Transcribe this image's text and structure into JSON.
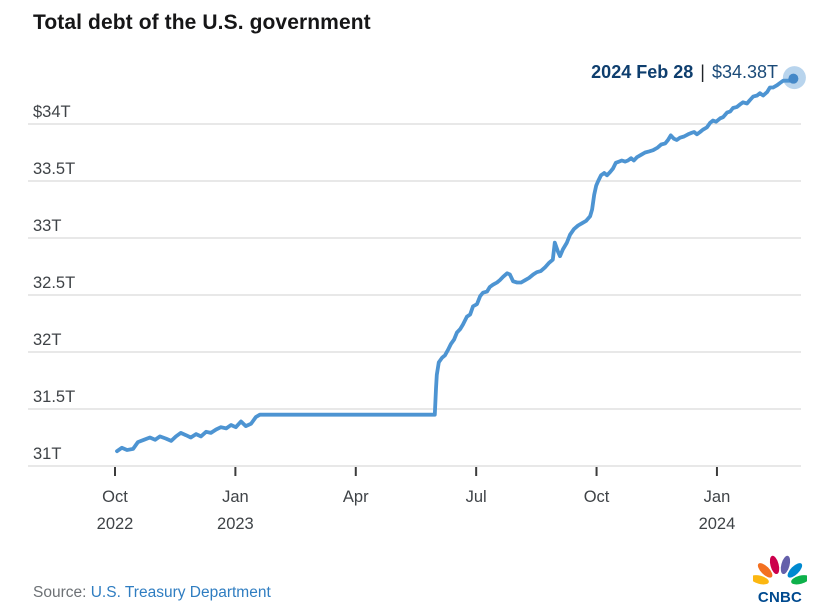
{
  "page": {
    "source_label": "Source:",
    "source_link": "U.S. Treasury Department",
    "brand": "CNBC"
  },
  "colors": {
    "line": "#4d94d2",
    "halo_opacity": 0.4,
    "endpoint_dot": "#4488c8",
    "grid": "#d9d9d9",
    "axis_text": "#3f4347",
    "tick_mark": "#3c3c3c",
    "title_text": "#161617",
    "annotation_date": "#0e3e6e",
    "annotation_value": "#1a4a78",
    "source_text": "#6d7175",
    "link_blue": "#2f7dc1",
    "cnbc_navy": "#004a8f",
    "peacock": [
      "#FCB711",
      "#F37021",
      "#CC004C",
      "#6460AA",
      "#0089D0",
      "#0DB14B"
    ]
  },
  "chart_data": {
    "type": "line",
    "title": "Total debt of the U.S. government",
    "unit": "trillions of U.S. dollars",
    "annotation": {
      "date": "2024 Feb 28",
      "separator": "|",
      "value": "$34.38T"
    },
    "x_axis": {
      "note": "t = months since Oct 1 2022",
      "range": [
        -2.1,
        17.1
      ],
      "ticks": [
        {
          "t": 0,
          "label": "Oct",
          "sublabel": "2022"
        },
        {
          "t": 3,
          "label": "Jan",
          "sublabel": "2023"
        },
        {
          "t": 6,
          "label": "Apr"
        },
        {
          "t": 9,
          "label": "Jul"
        },
        {
          "t": 12,
          "label": "Oct"
        },
        {
          "t": 15,
          "label": "Jan",
          "sublabel": "2024"
        }
      ]
    },
    "y_axis": {
      "range": [
        31,
        34.38
      ],
      "gridlines": true,
      "ticks": [
        {
          "v": 34,
          "label": "$34T"
        },
        {
          "v": 33.5,
          "label": "33.5T"
        },
        {
          "v": 33,
          "label": "33T"
        },
        {
          "v": 32.5,
          "label": "32.5T"
        },
        {
          "v": 32,
          "label": "32T"
        },
        {
          "v": 31.5,
          "label": "31.5T"
        },
        {
          "v": 31,
          "label": "31T"
        }
      ]
    },
    "series": [
      {
        "name": "Total debt",
        "points": [
          [
            0.05,
            31.13
          ],
          [
            0.17,
            31.16
          ],
          [
            0.3,
            31.14
          ],
          [
            0.45,
            31.15
          ],
          [
            0.57,
            31.21
          ],
          [
            0.72,
            31.23
          ],
          [
            0.87,
            31.25
          ],
          [
            1.0,
            31.23
          ],
          [
            1.12,
            31.26
          ],
          [
            1.27,
            31.24
          ],
          [
            1.4,
            31.22
          ],
          [
            1.52,
            31.26
          ],
          [
            1.64,
            31.29
          ],
          [
            1.77,
            31.27
          ],
          [
            1.89,
            31.25
          ],
          [
            2.02,
            31.28
          ],
          [
            2.14,
            31.26
          ],
          [
            2.27,
            31.3
          ],
          [
            2.39,
            31.29
          ],
          [
            2.52,
            31.32
          ],
          [
            2.64,
            31.34
          ],
          [
            2.77,
            31.33
          ],
          [
            2.89,
            31.36
          ],
          [
            3.01,
            31.34
          ],
          [
            3.14,
            31.39
          ],
          [
            3.26,
            31.35
          ],
          [
            3.39,
            31.37
          ],
          [
            3.51,
            31.43
          ],
          [
            3.61,
            31.45
          ],
          [
            4.0,
            31.45
          ],
          [
            4.5,
            31.45
          ],
          [
            5.0,
            31.45
          ],
          [
            5.5,
            31.45
          ],
          [
            6.0,
            31.45
          ],
          [
            6.5,
            31.45
          ],
          [
            7.0,
            31.45
          ],
          [
            7.5,
            31.45
          ],
          [
            7.97,
            31.45
          ],
          [
            8.0,
            31.68
          ],
          [
            8.02,
            31.8
          ],
          [
            8.07,
            31.91
          ],
          [
            8.15,
            31.95
          ],
          [
            8.22,
            31.97
          ],
          [
            8.3,
            32.02
          ],
          [
            8.37,
            32.07
          ],
          [
            8.45,
            32.11
          ],
          [
            8.52,
            32.17
          ],
          [
            8.6,
            32.2
          ],
          [
            8.67,
            32.24
          ],
          [
            8.77,
            32.31
          ],
          [
            8.85,
            32.33
          ],
          [
            8.92,
            32.4
          ],
          [
            9.02,
            32.42
          ],
          [
            9.1,
            32.49
          ],
          [
            9.17,
            32.52
          ],
          [
            9.27,
            32.53
          ],
          [
            9.34,
            32.57
          ],
          [
            9.42,
            32.59
          ],
          [
            9.52,
            32.61
          ],
          [
            9.59,
            32.63
          ],
          [
            9.67,
            32.66
          ],
          [
            9.77,
            32.69
          ],
          [
            9.84,
            32.68
          ],
          [
            9.92,
            32.62
          ],
          [
            10.02,
            32.61
          ],
          [
            10.12,
            32.61
          ],
          [
            10.22,
            32.63
          ],
          [
            10.32,
            32.65
          ],
          [
            10.42,
            32.68
          ],
          [
            10.51,
            32.7
          ],
          [
            10.61,
            32.71
          ],
          [
            10.71,
            32.74
          ],
          [
            10.81,
            32.78
          ],
          [
            10.91,
            32.81
          ],
          [
            10.96,
            32.96
          ],
          [
            11.04,
            32.88
          ],
          [
            11.09,
            32.84
          ],
          [
            11.16,
            32.9
          ],
          [
            11.26,
            32.96
          ],
          [
            11.34,
            33.03
          ],
          [
            11.44,
            33.08
          ],
          [
            11.54,
            33.11
          ],
          [
            11.64,
            33.13
          ],
          [
            11.74,
            33.15
          ],
          [
            11.84,
            33.19
          ],
          [
            11.89,
            33.25
          ],
          [
            11.94,
            33.38
          ],
          [
            11.99,
            33.46
          ],
          [
            12.04,
            33.5
          ],
          [
            12.11,
            33.55
          ],
          [
            12.19,
            33.57
          ],
          [
            12.26,
            33.55
          ],
          [
            12.34,
            33.58
          ],
          [
            12.41,
            33.61
          ],
          [
            12.48,
            33.66
          ],
          [
            12.56,
            33.67
          ],
          [
            12.63,
            33.68
          ],
          [
            12.71,
            33.67
          ],
          [
            12.78,
            33.68
          ],
          [
            12.86,
            33.7
          ],
          [
            12.93,
            33.68
          ],
          [
            13.01,
            33.71
          ],
          [
            13.11,
            33.73
          ],
          [
            13.21,
            33.75
          ],
          [
            13.31,
            33.76
          ],
          [
            13.41,
            33.77
          ],
          [
            13.51,
            33.79
          ],
          [
            13.61,
            33.82
          ],
          [
            13.71,
            33.83
          ],
          [
            13.78,
            33.86
          ],
          [
            13.85,
            33.9
          ],
          [
            13.93,
            33.87
          ],
          [
            14.0,
            33.86
          ],
          [
            14.08,
            33.88
          ],
          [
            14.18,
            33.89
          ],
          [
            14.28,
            33.91
          ],
          [
            14.35,
            33.92
          ],
          [
            14.43,
            33.93
          ],
          [
            14.5,
            33.91
          ],
          [
            14.58,
            33.93
          ],
          [
            14.65,
            33.95
          ],
          [
            14.75,
            33.97
          ],
          [
            14.83,
            34.01
          ],
          [
            14.9,
            34.03
          ],
          [
            14.98,
            34.02
          ],
          [
            15.08,
            34.05
          ],
          [
            15.15,
            34.06
          ],
          [
            15.25,
            34.1
          ],
          [
            15.33,
            34.11
          ],
          [
            15.4,
            34.14
          ],
          [
            15.5,
            34.15
          ],
          [
            15.57,
            34.17
          ],
          [
            15.65,
            34.19
          ],
          [
            15.75,
            34.18
          ],
          [
            15.82,
            34.21
          ],
          [
            15.9,
            34.24
          ],
          [
            16.0,
            34.25
          ],
          [
            16.07,
            34.27
          ],
          [
            16.15,
            34.25
          ],
          [
            16.25,
            34.28
          ],
          [
            16.32,
            34.32
          ],
          [
            16.4,
            34.32
          ],
          [
            16.5,
            34.34
          ],
          [
            16.57,
            34.36
          ],
          [
            16.65,
            34.38
          ],
          [
            16.75,
            34.38
          ],
          [
            16.88,
            34.38
          ]
        ]
      }
    ],
    "endpoint": {
      "t": 16.88,
      "v": 34.38
    }
  }
}
